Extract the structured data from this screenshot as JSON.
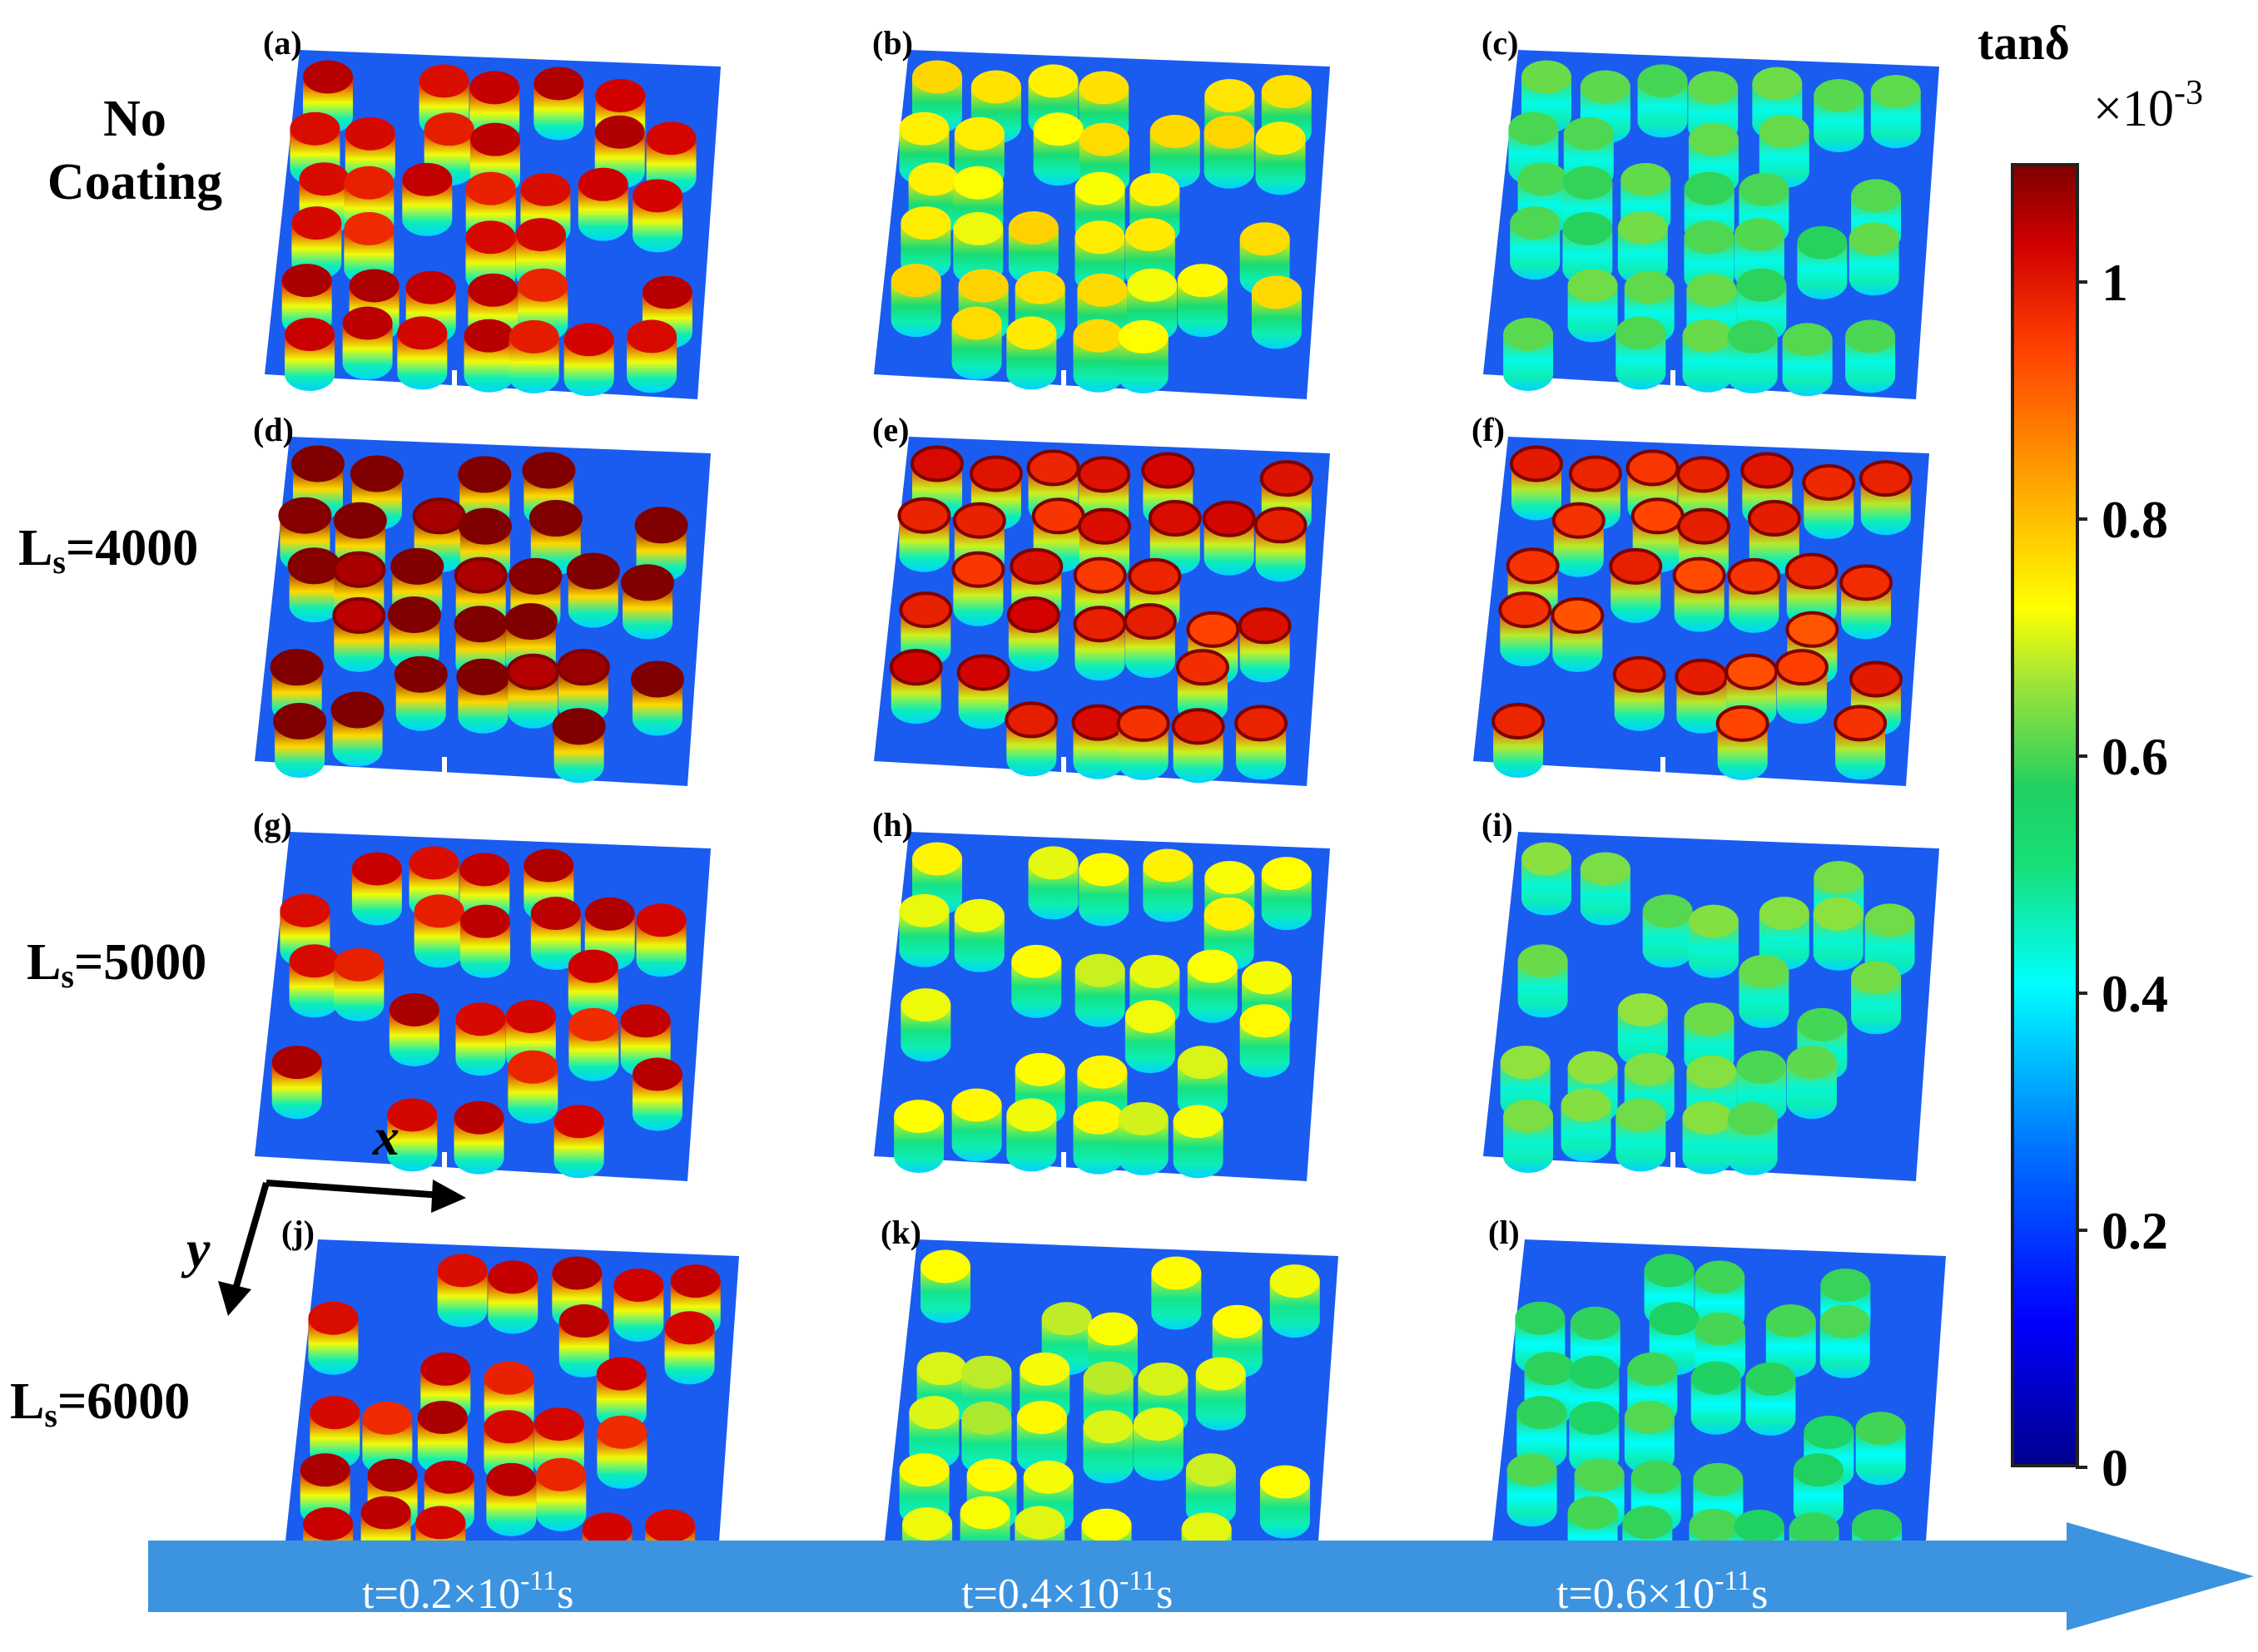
{
  "rows": [
    {
      "label_line1": "No",
      "label_line2": "Coating"
    },
    {
      "label_main": "L",
      "label_sub": "s",
      "label_rest": "=4000"
    },
    {
      "label_main": "L",
      "label_sub": "s",
      "label_rest": "=5000"
    },
    {
      "label_main": "L",
      "label_sub": "s",
      "label_rest": "=6000"
    }
  ],
  "panels": [
    {
      "label": "(a)",
      "level": 0.93,
      "rim": false
    },
    {
      "label": "(b)",
      "level": 0.68,
      "rim": false
    },
    {
      "label": "(c)",
      "level": 0.55,
      "rim": false
    },
    {
      "label": "(d)",
      "level": 1.0,
      "rim": true
    },
    {
      "label": "(e)",
      "level": 0.9,
      "rim": true
    },
    {
      "label": "(f)",
      "level": 0.88,
      "rim": true
    },
    {
      "label": "(g)",
      "level": 0.93,
      "rim": false
    },
    {
      "label": "(h)",
      "level": 0.65,
      "rim": false
    },
    {
      "label": "(i)",
      "level": 0.57,
      "rim": false
    },
    {
      "label": "(j)",
      "level": 0.93,
      "rim": false
    },
    {
      "label": "(k)",
      "level": 0.64,
      "rim": false
    },
    {
      "label": "(l)",
      "level": 0.53,
      "rim": false
    }
  ],
  "colorbar": {
    "title": "tanδ",
    "scale_base": "×10",
    "scale_exp": "-3",
    "ticks": [
      "1",
      "0.8",
      "0.6",
      "0.4",
      "0.2",
      "0"
    ],
    "tick_values": [
      1.0,
      0.8,
      0.6,
      0.4,
      0.2,
      0.0
    ],
    "max": 1.1
  },
  "axes": {
    "x": "x",
    "y": "y"
  },
  "time": [
    {
      "prefix": "t=0.2×10",
      "exp": "-11",
      "suffix": "s"
    },
    {
      "prefix": "t=0.4×10",
      "exp": "-11",
      "suffix": "s"
    },
    {
      "prefix": "t=0.6×10",
      "exp": "-11",
      "suffix": "s"
    }
  ],
  "colors": {
    "arrow": "#3c94e0",
    "base": "#1a5cf0",
    "label_text": "#000000"
  }
}
